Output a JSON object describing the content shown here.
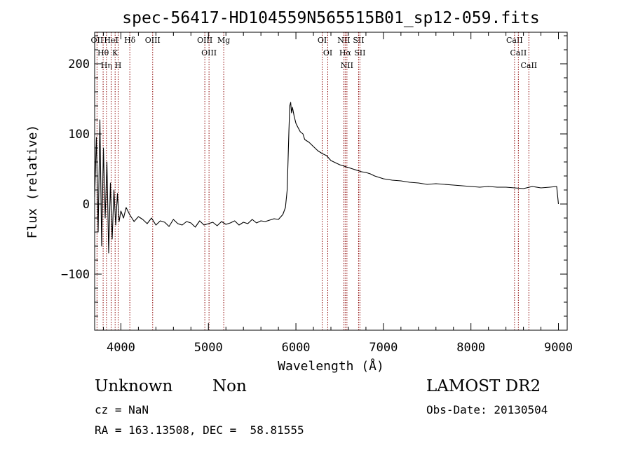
{
  "chart_data": {
    "type": "line",
    "title": "spec-56417-HD104559N565515B01_sp12-059.fits",
    "xlabel": "Wavelength (Å)",
    "ylabel": "Flux (relative)",
    "xlim": [
      3700,
      9100
    ],
    "ylim": [
      -180,
      245
    ],
    "x_ticks": [
      4000,
      5000,
      6000,
      7000,
      8000,
      9000
    ],
    "y_ticks": [
      -100,
      0,
      100,
      200
    ],
    "x_tick_labels": [
      "4000",
      "5000",
      "6000",
      "7000",
      "8000",
      "9000"
    ],
    "y_tick_labels": [
      "−100",
      "0",
      "100",
      "200"
    ],
    "series": [
      {
        "x": [
          3700,
          3720,
          3740,
          3760,
          3780,
          3800,
          3820,
          3840,
          3860,
          3880,
          3900,
          3920,
          3940,
          3960,
          3980,
          4000,
          4030,
          4060,
          4100,
          4150,
          4200,
          4250,
          4300,
          4350,
          4400,
          4450,
          4500,
          4550,
          4600,
          4650,
          4700,
          4750,
          4800,
          4850,
          4900,
          4950,
          5000,
          5050,
          5100,
          5150,
          5200,
          5250,
          5300,
          5350,
          5400,
          5450,
          5500,
          5550,
          5600,
          5650,
          5700,
          5750,
          5800,
          5850,
          5880,
          5900,
          5910,
          5920,
          5930,
          5940,
          5950,
          5960,
          5980,
          6000,
          6020,
          6050,
          6080,
          6100,
          6150,
          6200,
          6250,
          6300,
          6350,
          6400,
          6450,
          6500,
          6550,
          6600,
          6650,
          6700,
          6750,
          6800,
          6850,
          6900,
          6950,
          7000,
          7100,
          7200,
          7300,
          7400,
          7500,
          7600,
          7700,
          7800,
          7900,
          8000,
          8100,
          8200,
          8300,
          8400,
          8500,
          8600,
          8700,
          8800,
          8900,
          8980,
          9000
        ],
        "y": [
          10,
          95,
          -40,
          120,
          -60,
          80,
          -20,
          60,
          -70,
          30,
          -50,
          20,
          -30,
          15,
          -25,
          -10,
          -20,
          -5,
          -15,
          -25,
          -18,
          -22,
          -28,
          -20,
          -30,
          -24,
          -26,
          -32,
          -22,
          -28,
          -30,
          -25,
          -27,
          -33,
          -24,
          -30,
          -28,
          -26,
          -31,
          -25,
          -29,
          -27,
          -24,
          -30,
          -26,
          -28,
          -22,
          -27,
          -24,
          -25,
          -23,
          -21,
          -22,
          -15,
          -5,
          20,
          60,
          105,
          140,
          145,
          130,
          138,
          125,
          115,
          110,
          103,
          100,
          92,
          88,
          82,
          76,
          72,
          69,
          62,
          59,
          56,
          54,
          52,
          50,
          48,
          46,
          45,
          43,
          40,
          38,
          36,
          34,
          33,
          31,
          30,
          28,
          29,
          28,
          27,
          26,
          25,
          24,
          25,
          24,
          24,
          23,
          22,
          25,
          23,
          24,
          25,
          0
        ]
      }
    ],
    "annotations": [
      {
        "label": "OII",
        "x": 3727
      },
      {
        "label": "Hθ",
        "x": 3797
      },
      {
        "label": "Hη",
        "x": 3835
      },
      {
        "label": "HeI",
        "x": 3889
      },
      {
        "label": "K",
        "x": 3934
      },
      {
        "label": "H",
        "x": 3969
      },
      {
        "label": "Hδ",
        "x": 4102
      },
      {
        "label": "OIII",
        "x": 4363
      },
      {
        "label": "OIII",
        "x": 4959
      },
      {
        "label": "OIII",
        "x": 5007
      },
      {
        "label": "Mg",
        "x": 5175
      },
      {
        "label": "OI",
        "x": 6300
      },
      {
        "label": "OI",
        "x": 6364
      },
      {
        "label": "NII",
        "x": 6548
      },
      {
        "label": "Hα",
        "x": 6563
      },
      {
        "label": "NII",
        "x": 6583
      },
      {
        "label": "SII",
        "x": 6716
      },
      {
        "label": "SII",
        "x": 6731
      },
      {
        "label": "CaII",
        "x": 8498
      },
      {
        "label": "CaII",
        "x": 8542
      },
      {
        "label": "CaII",
        "x": 8662
      }
    ],
    "colors": {
      "line": "#000000",
      "marker_lines": "#8b0000",
      "axes": "#000000"
    }
  },
  "info": {
    "class": "Unknown",
    "subclass": "Non",
    "survey": "LAMOST DR2",
    "cz": "cz = NaN",
    "obs_date": "Obs-Date: 20130504",
    "coords": "RA = 163.13508, DEC =  58.81555"
  }
}
